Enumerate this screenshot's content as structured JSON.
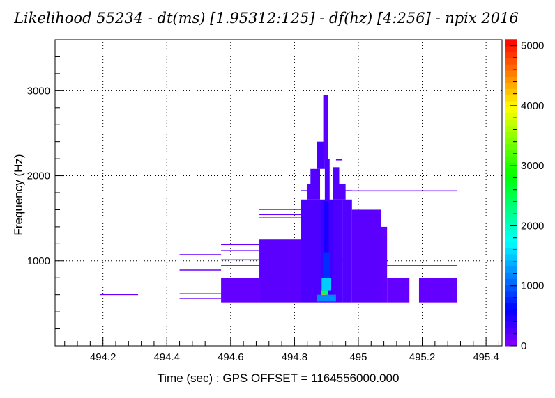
{
  "chart_data": {
    "type": "heatmap",
    "title": "Likelihood 55234 - dt(ms) [1.95312:125] - df(hz) [4:256] - npix 2016",
    "xlabel": "Time (sec) : GPS OFFSET = 1164556000.000",
    "ylabel": "Frequency (Hz)",
    "xlim": [
      494.05,
      495.45
    ],
    "ylim": [
      0,
      3600
    ],
    "x_ticks": [
      494.2,
      494.4,
      494.6,
      494.8,
      495,
      495.2,
      495.4
    ],
    "x_tick_labels": [
      "494.2",
      "494.4",
      "494.6",
      "494.8",
      "495",
      "495.2",
      "495.4"
    ],
    "y_ticks": [
      1000,
      2000,
      3000
    ],
    "y_tick_labels": [
      "1000",
      "2000",
      "3000"
    ],
    "colorbar": {
      "range": [
        0,
        5100
      ],
      "ticks": [
        0,
        1000,
        2000,
        3000,
        4000,
        5000
      ],
      "tick_labels": [
        "0",
        "1000",
        "2000",
        "3000",
        "4000",
        "5000"
      ],
      "colormap": "rainbow (violet to red)"
    },
    "grid": true,
    "low_color": "#8c00ff",
    "cells": [
      {
        "t": [
          494.19,
          494.31
        ],
        "f": [
          600,
          608
        ],
        "v": 150
      },
      {
        "t": [
          494.44,
          494.57
        ],
        "f": [
          1070,
          1078
        ],
        "v": 150
      },
      {
        "t": [
          494.44,
          494.57
        ],
        "f": [
          890,
          898
        ],
        "v": 150
      },
      {
        "t": [
          494.44,
          494.57
        ],
        "f": [
          610,
          618
        ],
        "v": 150
      },
      {
        "t": [
          494.44,
          494.57
        ],
        "f": [
          555,
          563
        ],
        "v": 150
      },
      {
        "t": [
          494.57,
          494.69
        ],
        "f": [
          510,
          800
        ],
        "v": 160
      },
      {
        "t": [
          494.57,
          494.69
        ],
        "f": [
          1190,
          1198
        ],
        "v": 150
      },
      {
        "t": [
          494.57,
          494.69
        ],
        "f": [
          1120,
          1128
        ],
        "v": 150
      },
      {
        "t": [
          494.57,
          494.69
        ],
        "f": [
          1010,
          1018
        ],
        "v": 150
      },
      {
        "t": [
          494.57,
          494.69
        ],
        "f": [
          940,
          948
        ],
        "v": 150
      },
      {
        "t": [
          494.69,
          494.82
        ],
        "f": [
          510,
          1250
        ],
        "v": 200
      },
      {
        "t": [
          494.69,
          494.82
        ],
        "f": [
          1600,
          1610
        ],
        "v": 150
      },
      {
        "t": [
          494.69,
          494.82
        ],
        "f": [
          1540,
          1550
        ],
        "v": 150
      },
      {
        "t": [
          494.69,
          494.82
        ],
        "f": [
          1500,
          1510
        ],
        "v": 150
      },
      {
        "t": [
          494.82,
          494.88
        ],
        "f": [
          510,
          1720
        ],
        "v": 260
      },
      {
        "t": [
          494.82,
          494.85
        ],
        "f": [
          1820,
          1830
        ],
        "v": 200
      },
      {
        "t": [
          494.84,
          494.88
        ],
        "f": [
          1720,
          1900
        ],
        "v": 220
      },
      {
        "t": [
          494.85,
          494.88
        ],
        "f": [
          1900,
          2080
        ],
        "v": 240
      },
      {
        "t": [
          494.87,
          494.895
        ],
        "f": [
          2080,
          2400
        ],
        "v": 280
      },
      {
        "t": [
          494.88,
          494.92
        ],
        "f": [
          510,
          1720
        ],
        "v": 320
      },
      {
        "t": [
          494.92,
          494.95
        ],
        "f": [
          510,
          1720
        ],
        "v": 260
      },
      {
        "t": [
          494.92,
          494.96
        ],
        "f": [
          1720,
          1900
        ],
        "v": 220
      },
      {
        "t": [
          494.92,
          494.94
        ],
        "f": [
          1900,
          2100
        ],
        "v": 240
      },
      {
        "t": [
          494.93,
          494.95
        ],
        "f": [
          2180,
          2200
        ],
        "v": 200
      },
      {
        "t": [
          494.95,
          494.98
        ],
        "f": [
          510,
          1720
        ],
        "v": 240
      },
      {
        "t": [
          494.95,
          494.98
        ],
        "f": [
          1820,
          1830
        ],
        "v": 180
      },
      {
        "t": [
          494.98,
          495.07
        ],
        "f": [
          510,
          1600
        ],
        "v": 200
      },
      {
        "t": [
          495.07,
          495.09
        ],
        "f": [
          510,
          1400
        ],
        "v": 170
      },
      {
        "t": [
          494.98,
          495.31
        ],
        "f": [
          1820,
          1828
        ],
        "v": 150
      },
      {
        "t": [
          495.09,
          495.16
        ],
        "f": [
          510,
          800
        ],
        "v": 160
      },
      {
        "t": [
          495.09,
          495.31
        ],
        "f": [
          940,
          948
        ],
        "v": 150
      },
      {
        "t": [
          495.19,
          495.31
        ],
        "f": [
          510,
          800
        ],
        "v": 160
      },
      {
        "t": [
          494.89,
          494.905
        ],
        "f": [
          2200,
          2950
        ],
        "v": 200
      },
      {
        "t": [
          494.895,
          494.91
        ],
        "f": [
          1700,
          2200
        ],
        "v": 260
      },
      {
        "t": [
          494.893,
          494.907
        ],
        "f": [
          1100,
          1700
        ],
        "v": 500
      },
      {
        "t": [
          494.89,
          494.91
        ],
        "f": [
          800,
          1100
        ],
        "v": 800
      },
      {
        "t": [
          494.885,
          494.915
        ],
        "f": [
          650,
          800
        ],
        "v": 1500
      },
      {
        "t": [
          494.883,
          494.905
        ],
        "f": [
          570,
          650
        ],
        "v": 2500
      },
      {
        "t": [
          494.886,
          494.9
        ],
        "f": [
          580,
          610
        ],
        "v": 4200
      },
      {
        "t": [
          494.87,
          494.93
        ],
        "f": [
          520,
          600
        ],
        "v": 1200
      }
    ]
  }
}
